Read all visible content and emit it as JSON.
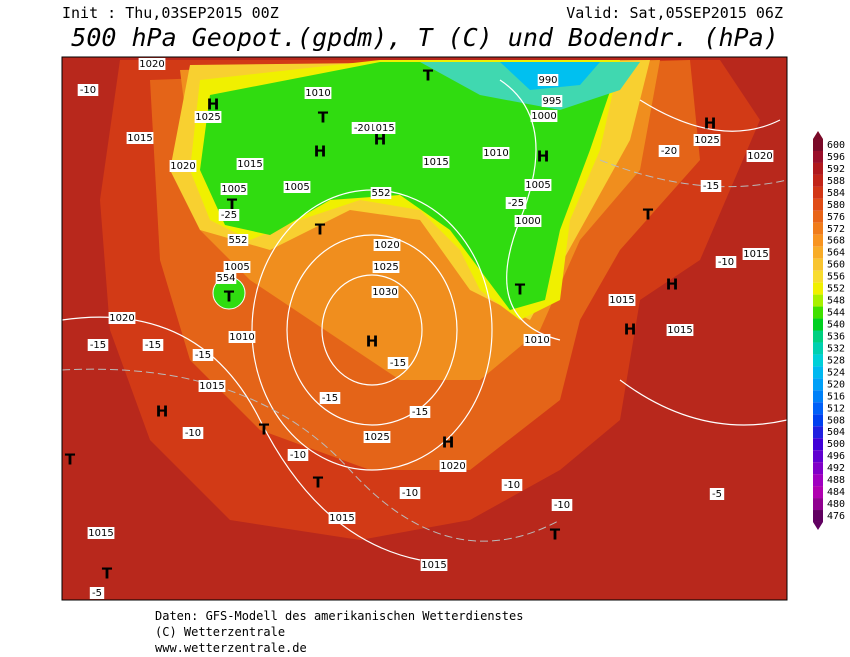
{
  "header": {
    "init": "Init : Thu,03SEP2015 00Z",
    "valid": "Valid: Sat,05SEP2015 06Z",
    "title": "500 hPa Geopot.(gpdm), T (C) und Bodendr. (hPa)"
  },
  "colorbar": {
    "ticks": [
      600,
      596,
      592,
      588,
      584,
      580,
      576,
      572,
      568,
      564,
      560,
      556,
      552,
      548,
      544,
      540,
      536,
      532,
      528,
      524,
      520,
      516,
      512,
      508,
      504,
      500,
      496,
      492,
      488,
      484,
      480,
      476
    ],
    "colors": [
      "#7a0a28",
      "#9a0f2a",
      "#b0181c",
      "#c22418",
      "#d23616",
      "#e04c16",
      "#e86418",
      "#f07c1a",
      "#f89420",
      "#f8ac28",
      "#f8c430",
      "#f8dc30",
      "#f0f000",
      "#a8f000",
      "#40e000",
      "#00d020",
      "#00d080",
      "#00d0b0",
      "#00d0d8",
      "#00b8f0",
      "#00a0f8",
      "#0080f8",
      "#0060f8",
      "#0040f0",
      "#2020e0",
      "#4000d8",
      "#6000d0",
      "#8000c8",
      "#a000c0",
      "#b000b0",
      "#900090",
      "#600060"
    ]
  },
  "map": {
    "labels": [
      "H",
      "H",
      "H",
      "H",
      "H",
      "H",
      "H",
      "H",
      "H",
      "H",
      "T",
      "T",
      "T",
      "T",
      "T",
      "T",
      "T",
      "T",
      "T",
      "T",
      "T",
      "T",
      "1020",
      "1010",
      "990",
      "995",
      "1000",
      "1025",
      "1015",
      "1015",
      "1020",
      "1015",
      "1005",
      "1005",
      "1015",
      "1010",
      "1005",
      "1000",
      "1020",
      "1025",
      "1030",
      "1005",
      "1010",
      "1020",
      "1015",
      "1025",
      "1020",
      "1015",
      "1015",
      "1015",
      "1015",
      "1015",
      "1010",
      "1025",
      "1020",
      "1015",
      "-10",
      "-15",
      "-15",
      "-15",
      "-10",
      "-10",
      "-15",
      "-15",
      "-15",
      "-10",
      "-10",
      "-10",
      "-5",
      "-5",
      "-20",
      "-15",
      "-10",
      "-20",
      "-25",
      "-25",
      "552",
      "552",
      "554"
    ]
  },
  "footer": [
    "Daten: GFS-Modell des amerikanischen Wetterdienstes",
    "(C) Wetterzentrale",
    "www.wetterzentrale.de"
  ]
}
